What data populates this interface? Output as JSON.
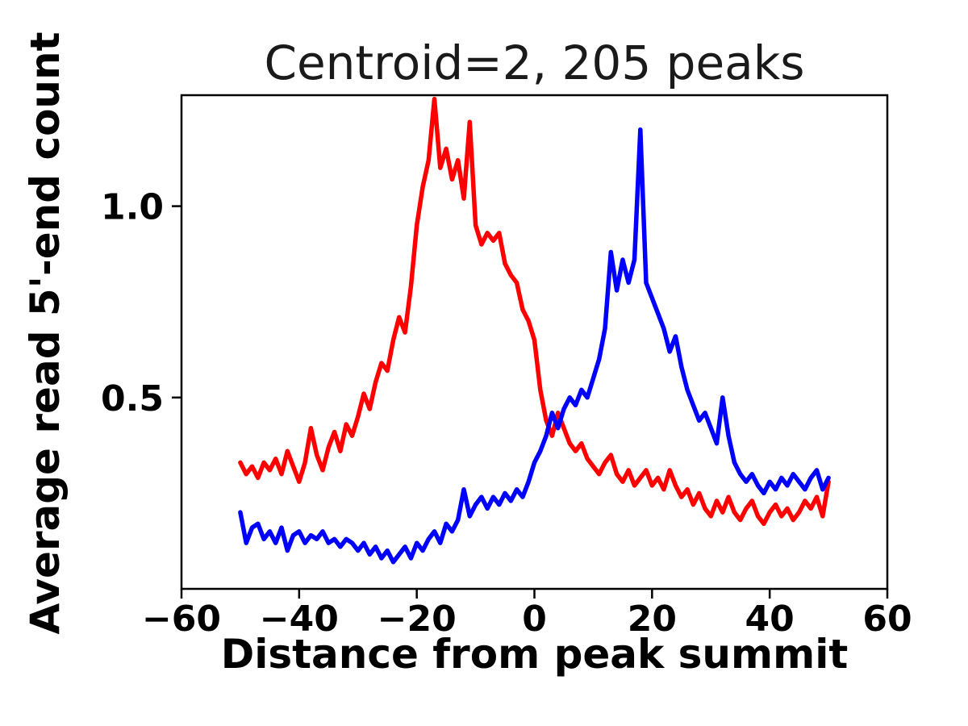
{
  "chart_data": {
    "type": "line",
    "title": "Centroid=2, 205 peaks",
    "xlabel": "Distance from peak summit",
    "ylabel": "Average read 5'-end count",
    "xlim": [
      -60,
      60
    ],
    "ylim": [
      0,
      1.29
    ],
    "grid": false,
    "legend": "none",
    "x_ticks": {
      "values": [
        -60,
        -40,
        -20,
        0,
        20,
        40,
        60
      ],
      "labels": [
        "−60",
        "−40",
        "−20",
        "0",
        "20",
        "40",
        "60"
      ]
    },
    "y_ticks": {
      "values": [
        0.5,
        1.0
      ],
      "labels": [
        "0.5",
        "1.0"
      ]
    },
    "x": [
      -50,
      -49,
      -48,
      -47,
      -46,
      -45,
      -44,
      -43,
      -42,
      -41,
      -40,
      -39,
      -38,
      -37,
      -36,
      -35,
      -34,
      -33,
      -32,
      -31,
      -30,
      -29,
      -28,
      -27,
      -26,
      -25,
      -24,
      -23,
      -22,
      -21,
      -20,
      -19,
      -18,
      -17,
      -16,
      -15,
      -14,
      -13,
      -12,
      -11,
      -10,
      -9,
      -8,
      -7,
      -6,
      -5,
      -4,
      -3,
      -2,
      -1,
      0,
      1,
      2,
      3,
      4,
      5,
      6,
      7,
      8,
      9,
      10,
      11,
      12,
      13,
      14,
      15,
      16,
      17,
      18,
      19,
      20,
      21,
      22,
      23,
      24,
      25,
      26,
      27,
      28,
      29,
      30,
      31,
      32,
      33,
      34,
      35,
      36,
      37,
      38,
      39,
      40,
      41,
      42,
      43,
      44,
      45,
      46,
      47,
      48,
      49,
      50
    ],
    "series": [
      {
        "name": "red-line",
        "color": "#ff0000",
        "values": [
          0.33,
          0.3,
          0.32,
          0.29,
          0.33,
          0.31,
          0.34,
          0.3,
          0.36,
          0.32,
          0.28,
          0.33,
          0.42,
          0.35,
          0.31,
          0.37,
          0.41,
          0.36,
          0.43,
          0.4,
          0.45,
          0.51,
          0.47,
          0.54,
          0.59,
          0.57,
          0.65,
          0.71,
          0.67,
          0.79,
          0.95,
          1.05,
          1.12,
          1.28,
          1.1,
          1.15,
          1.07,
          1.12,
          1.02,
          1.22,
          0.95,
          0.9,
          0.93,
          0.91,
          0.93,
          0.85,
          0.82,
          0.8,
          0.73,
          0.7,
          0.65,
          0.52,
          0.44,
          0.4,
          0.46,
          0.42,
          0.38,
          0.36,
          0.38,
          0.34,
          0.32,
          0.3,
          0.33,
          0.35,
          0.3,
          0.28,
          0.31,
          0.27,
          0.29,
          0.31,
          0.27,
          0.29,
          0.26,
          0.31,
          0.27,
          0.24,
          0.26,
          0.22,
          0.25,
          0.21,
          0.19,
          0.23,
          0.2,
          0.24,
          0.2,
          0.18,
          0.21,
          0.23,
          0.19,
          0.17,
          0.2,
          0.22,
          0.19,
          0.21,
          0.18,
          0.2,
          0.23,
          0.21,
          0.24,
          0.19,
          0.28
        ]
      },
      {
        "name": "blue-line",
        "color": "#0000ff",
        "values": [
          0.2,
          0.12,
          0.16,
          0.17,
          0.13,
          0.15,
          0.12,
          0.16,
          0.1,
          0.14,
          0.15,
          0.12,
          0.14,
          0.13,
          0.15,
          0.12,
          0.13,
          0.11,
          0.13,
          0.12,
          0.1,
          0.12,
          0.09,
          0.11,
          0.08,
          0.1,
          0.07,
          0.09,
          0.11,
          0.08,
          0.12,
          0.1,
          0.13,
          0.15,
          0.12,
          0.17,
          0.15,
          0.18,
          0.26,
          0.19,
          0.22,
          0.24,
          0.21,
          0.24,
          0.22,
          0.25,
          0.23,
          0.26,
          0.24,
          0.28,
          0.33,
          0.36,
          0.4,
          0.46,
          0.42,
          0.47,
          0.5,
          0.48,
          0.52,
          0.5,
          0.55,
          0.6,
          0.68,
          0.88,
          0.78,
          0.86,
          0.8,
          0.86,
          1.2,
          0.8,
          0.76,
          0.72,
          0.68,
          0.62,
          0.66,
          0.58,
          0.52,
          0.48,
          0.44,
          0.46,
          0.42,
          0.38,
          0.5,
          0.4,
          0.33,
          0.3,
          0.28,
          0.3,
          0.27,
          0.25,
          0.28,
          0.26,
          0.29,
          0.27,
          0.3,
          0.28,
          0.26,
          0.29,
          0.31,
          0.26,
          0.29
        ]
      }
    ],
    "colors": {
      "axis": "#000000",
      "title_color": "#1a1a1a"
    }
  }
}
